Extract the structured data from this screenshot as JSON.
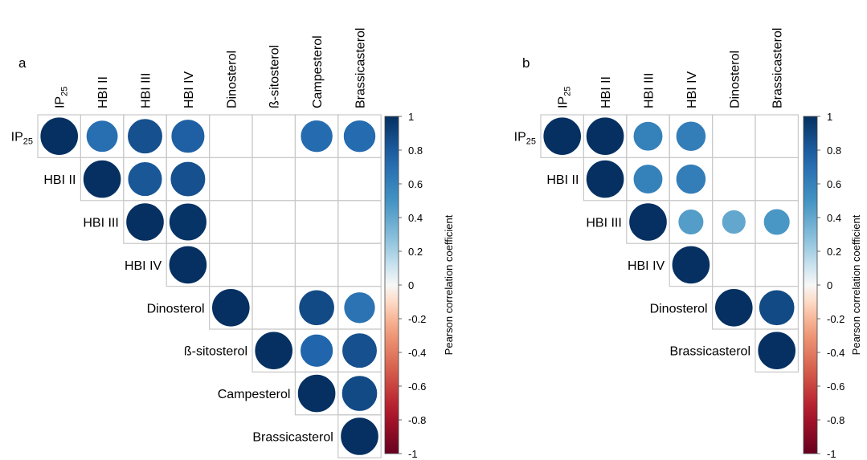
{
  "chart_data": [
    {
      "type": "heatmap",
      "panel_label": "a",
      "variables": [
        "IP25",
        "HBI II",
        "HBI III",
        "HBI IV",
        "Dinosterol",
        "ß-sitosterol",
        "Campesterol",
        "Brassicasterol"
      ],
      "colorbar": {
        "label": "Pearson correlation coefficient",
        "ticks": [
          "1",
          "0.8",
          "0.6",
          "0.4",
          "0.2",
          "0",
          "-0.2",
          "-0.4",
          "-0.6",
          "-0.8",
          "-1"
        ],
        "range": [
          -1,
          1
        ]
      },
      "cells": [
        {
          "row": 0,
          "col": 0,
          "value": 1.0
        },
        {
          "row": 0,
          "col": 1,
          "value": 0.7
        },
        {
          "row": 0,
          "col": 2,
          "value": 0.85
        },
        {
          "row": 0,
          "col": 3,
          "value": 0.78
        },
        {
          "row": 0,
          "col": 6,
          "value": 0.72
        },
        {
          "row": 0,
          "col": 7,
          "value": 0.72
        },
        {
          "row": 1,
          "col": 1,
          "value": 1.0
        },
        {
          "row": 1,
          "col": 2,
          "value": 0.82
        },
        {
          "row": 1,
          "col": 3,
          "value": 0.85
        },
        {
          "row": 2,
          "col": 2,
          "value": 1.0
        },
        {
          "row": 2,
          "col": 3,
          "value": 0.98
        },
        {
          "row": 3,
          "col": 3,
          "value": 1.0
        },
        {
          "row": 4,
          "col": 4,
          "value": 1.0
        },
        {
          "row": 4,
          "col": 6,
          "value": 0.88
        },
        {
          "row": 4,
          "col": 7,
          "value": 0.68
        },
        {
          "row": 5,
          "col": 5,
          "value": 1.0
        },
        {
          "row": 5,
          "col": 6,
          "value": 0.75
        },
        {
          "row": 5,
          "col": 7,
          "value": 0.85
        },
        {
          "row": 6,
          "col": 6,
          "value": 1.0
        },
        {
          "row": 6,
          "col": 7,
          "value": 0.88
        },
        {
          "row": 7,
          "col": 7,
          "value": 1.0
        }
      ]
    },
    {
      "type": "heatmap",
      "panel_label": "b",
      "variables": [
        "IP25",
        "HBI II",
        "HBI III",
        "HBI IV",
        "Dinosterol",
        "Brassicasterol"
      ],
      "colorbar": {
        "label": "Pearson correlation coefficient",
        "ticks": [
          "1",
          "0.8",
          "0.6",
          "0.4",
          "0.2",
          "0",
          "-0.2",
          "-0.4",
          "-0.6",
          "-0.8",
          "-1"
        ],
        "range": [
          -1,
          1
        ]
      },
      "cells": [
        {
          "row": 0,
          "col": 0,
          "value": 1.0
        },
        {
          "row": 0,
          "col": 1,
          "value": 1.0
        },
        {
          "row": 0,
          "col": 2,
          "value": 0.6
        },
        {
          "row": 0,
          "col": 3,
          "value": 0.62
        },
        {
          "row": 1,
          "col": 1,
          "value": 1.0
        },
        {
          "row": 1,
          "col": 2,
          "value": 0.6
        },
        {
          "row": 1,
          "col": 3,
          "value": 0.62
        },
        {
          "row": 2,
          "col": 2,
          "value": 1.0
        },
        {
          "row": 2,
          "col": 3,
          "value": 0.45
        },
        {
          "row": 2,
          "col": 4,
          "value": 0.4
        },
        {
          "row": 2,
          "col": 5,
          "value": 0.48
        },
        {
          "row": 3,
          "col": 3,
          "value": 1.0
        },
        {
          "row": 4,
          "col": 4,
          "value": 1.0
        },
        {
          "row": 4,
          "col": 5,
          "value": 0.88
        },
        {
          "row": 5,
          "col": 5,
          "value": 1.0
        }
      ]
    }
  ]
}
